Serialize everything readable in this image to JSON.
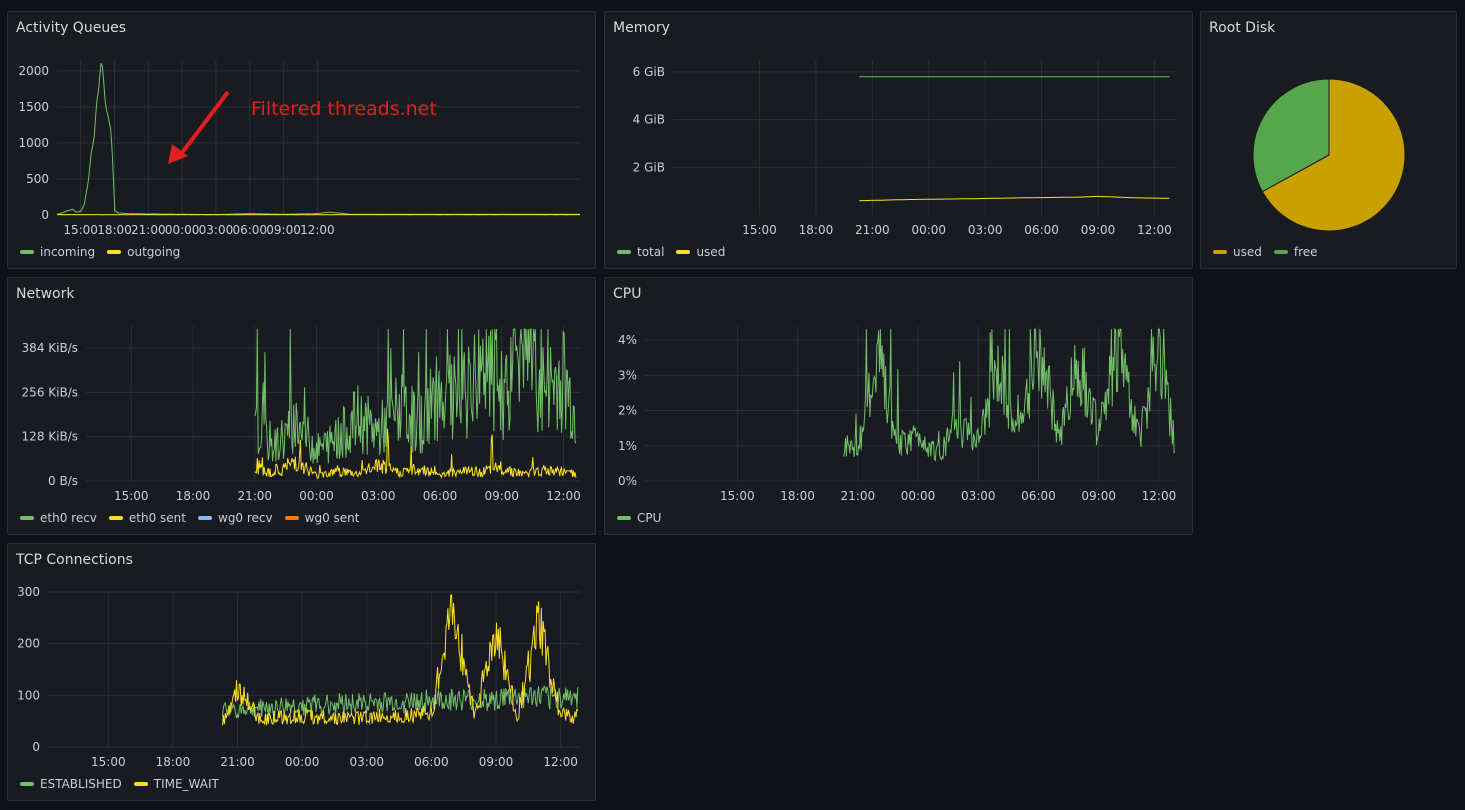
{
  "colors": {
    "green": "#73bf69",
    "yellow": "#fade2a",
    "blue": "#8ab8ff",
    "orange": "#ff780a",
    "pie_used": "#c8a000",
    "pie_free": "#56a64b",
    "grid": "#2c2f36",
    "annotation": "#e02020"
  },
  "panels": {
    "activity": {
      "title": "Activity Queues",
      "annotation": "Filtered threads.net"
    },
    "memory": {
      "title": "Memory"
    },
    "disk": {
      "title": "Root Disk"
    },
    "network": {
      "title": "Network"
    },
    "cpu": {
      "title": "CPU"
    },
    "tcp": {
      "title": "TCP Connections"
    }
  },
  "chart_data": [
    {
      "id": "activity",
      "type": "line",
      "title": "Activity Queues",
      "x_ticks": [
        "15:00",
        "18:00",
        "21:00",
        "00:00",
        "03:00",
        "06:00",
        "09:00",
        "12:00"
      ],
      "y_ticks": [
        "0",
        "500",
        "1000",
        "1500",
        "2000"
      ],
      "ylim": [
        0,
        2150
      ],
      "grid": true,
      "legend_position": "bottom-left",
      "series": [
        {
          "name": "incoming",
          "color": "#73bf69",
          "x": [
            12.9,
            13.4,
            13.8,
            14.3,
            14.6,
            15.0,
            15.3,
            15.6,
            15.9,
            16.2,
            16.4,
            16.6,
            16.8,
            16.95,
            17.1,
            17.3,
            17.5,
            17.7,
            17.85,
            18.0,
            18.3,
            19.0,
            21,
            24,
            27,
            30,
            33,
            36,
            37,
            39,
            42,
            45,
            48,
            51,
            54,
            58,
            59.3
          ],
          "y": [
            10,
            30,
            60,
            80,
            40,
            50,
            130,
            380,
            800,
            1150,
            1500,
            1800,
            2050,
            2080,
            1800,
            1400,
            1250,
            1150,
            800,
            60,
            30,
            20,
            15,
            10,
            5,
            20,
            10,
            20,
            40,
            10,
            10,
            10,
            10,
            10,
            10,
            10,
            10
          ]
        },
        {
          "name": "outgoing",
          "color": "#fade2a",
          "x": [
            12.9,
            18.0,
            24,
            30,
            36,
            42,
            48,
            54,
            59.3
          ],
          "y": [
            5,
            5,
            5,
            5,
            5,
            5,
            5,
            5,
            5
          ]
        }
      ]
    },
    {
      "id": "memory",
      "type": "line",
      "title": "Memory",
      "x_ticks": [
        "15:00",
        "18:00",
        "21:00",
        "00:00",
        "03:00",
        "06:00",
        "09:00",
        "12:00"
      ],
      "y_ticks": [
        "2 GiB",
        "4 GiB",
        "6 GiB"
      ],
      "ylim": [
        0,
        6.5
      ],
      "grid": true,
      "legend_position": "bottom-left",
      "series": [
        {
          "name": "total",
          "color": "#73bf69",
          "x": [
            20.3,
            36.8
          ],
          "y": [
            5.8,
            5.8
          ]
        },
        {
          "name": "used",
          "color": "#fade2a",
          "x": [
            20.3,
            23,
            26,
            29,
            32,
            33,
            35,
            36.8
          ],
          "y": [
            0.6,
            0.65,
            0.68,
            0.72,
            0.75,
            0.78,
            0.72,
            0.7
          ]
        }
      ]
    },
    {
      "id": "disk",
      "type": "pie",
      "title": "Root Disk",
      "legend_position": "bottom-left",
      "slices": [
        {
          "name": "used",
          "value": 67,
          "color": "#c8a000"
        },
        {
          "name": "free",
          "value": 33,
          "color": "#56a64b"
        }
      ]
    },
    {
      "id": "network",
      "type": "line",
      "title": "Network",
      "x_ticks": [
        "15:00",
        "18:00",
        "21:00",
        "00:00",
        "03:00",
        "06:00",
        "09:00",
        "12:00"
      ],
      "y_ticks": [
        "0 B/s",
        "128 KiB/s",
        "256 KiB/s",
        "384 KiB/s"
      ],
      "ylim": [
        0,
        448
      ],
      "grid": true,
      "legend_position": "bottom-left",
      "series": [
        {
          "name": "eth0 recv",
          "color": "#73bf69",
          "x": [
            21,
            22,
            23,
            24,
            25,
            26,
            27,
            28,
            29,
            30,
            31,
            32,
            33,
            34,
            35,
            36,
            36.6
          ],
          "y": [
            150,
            100,
            170,
            90,
            120,
            180,
            140,
            210,
            160,
            260,
            220,
            330,
            250,
            420,
            260,
            300,
            180
          ]
        },
        {
          "name": "eth0 sent",
          "color": "#fade2a",
          "x": [
            21,
            22,
            23,
            24,
            25,
            26,
            27,
            28,
            29,
            30,
            31,
            32,
            33,
            34,
            35,
            36,
            36.6
          ],
          "y": [
            40,
            20,
            60,
            15,
            30,
            20,
            45,
            25,
            35,
            20,
            30,
            25,
            40,
            20,
            30,
            25,
            20
          ]
        },
        {
          "name": "wg0 recv",
          "color": "#8ab8ff",
          "x": [],
          "y": []
        },
        {
          "name": "wg0 sent",
          "color": "#ff780a",
          "x": [],
          "y": []
        }
      ]
    },
    {
      "id": "cpu",
      "type": "line",
      "title": "CPU",
      "x_ticks": [
        "15:00",
        "18:00",
        "21:00",
        "00:00",
        "03:00",
        "06:00",
        "09:00",
        "12:00"
      ],
      "y_ticks": [
        "0%",
        "1%",
        "2%",
        "3%",
        "4%"
      ],
      "ylim": [
        0,
        4.4
      ],
      "grid": true,
      "legend_position": "bottom-left",
      "series": [
        {
          "name": "CPU",
          "color": "#73bf69",
          "x": [
            20.3,
            21,
            22,
            23,
            24,
            25,
            26,
            27,
            28,
            29,
            30,
            31,
            32,
            33,
            34,
            35,
            36,
            36.8
          ],
          "y": [
            1.0,
            0.9,
            3.5,
            1.0,
            1.3,
            0.8,
            1.5,
            1.1,
            3.0,
            1.2,
            3.9,
            1.2,
            3.5,
            1.3,
            3.9,
            1.2,
            3.8,
            1.0
          ]
        }
      ]
    },
    {
      "id": "tcp",
      "type": "line",
      "title": "TCP Connections",
      "x_ticks": [
        "15:00",
        "18:00",
        "21:00",
        "00:00",
        "03:00",
        "06:00",
        "09:00",
        "12:00"
      ],
      "y_ticks": [
        "0",
        "100",
        "200",
        "300"
      ],
      "ylim": [
        0,
        300
      ],
      "grid": true,
      "legend_position": "bottom-left",
      "series": [
        {
          "name": "ESTABLISHED",
          "color": "#73bf69",
          "x": [
            20.3,
            22,
            24,
            26,
            28,
            30,
            32,
            34,
            36,
            36.8
          ],
          "y": [
            70,
            75,
            80,
            85,
            85,
            90,
            90,
            95,
            95,
            100
          ]
        },
        {
          "name": "TIME_WAIT",
          "color": "#fade2a",
          "x": [
            20.3,
            21,
            22,
            24,
            26,
            28,
            30,
            31,
            32,
            33,
            34,
            35,
            36,
            36.8
          ],
          "y": [
            50,
            110,
            55,
            60,
            55,
            60,
            65,
            270,
            60,
            220,
            60,
            240,
            60,
            60
          ]
        }
      ]
    }
  ]
}
